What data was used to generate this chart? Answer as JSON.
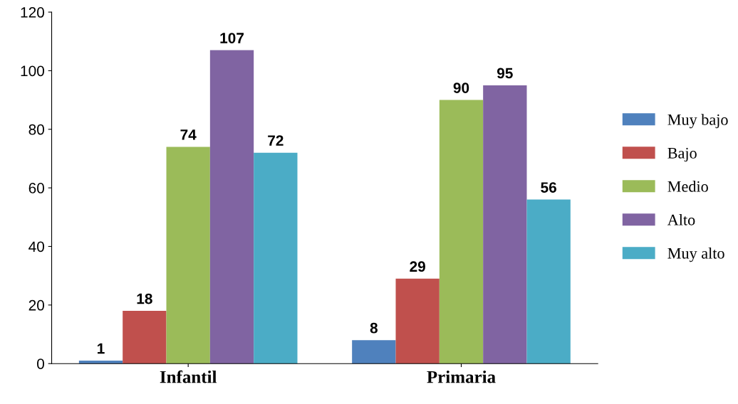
{
  "chart_data": {
    "type": "bar",
    "categories": [
      "Infantil",
      "Primaria"
    ],
    "series": [
      {
        "name": "Muy bajo",
        "color": "#4f81bd",
        "values": [
          1,
          8
        ]
      },
      {
        "name": "Bajo",
        "color": "#c0504d",
        "values": [
          18,
          29
        ]
      },
      {
        "name": "Medio",
        "color": "#9bbb59",
        "values": [
          74,
          90
        ]
      },
      {
        "name": "Alto",
        "color": "#8064a2",
        "values": [
          107,
          95
        ]
      },
      {
        "name": "Muy alto",
        "color": "#4bacc6",
        "values": [
          72,
          56
        ]
      }
    ],
    "ylim": [
      0,
      120
    ],
    "yticks": [
      0,
      20,
      40,
      60,
      80,
      100,
      120
    ],
    "grid": false,
    "legend": "right",
    "data_labels": true
  }
}
